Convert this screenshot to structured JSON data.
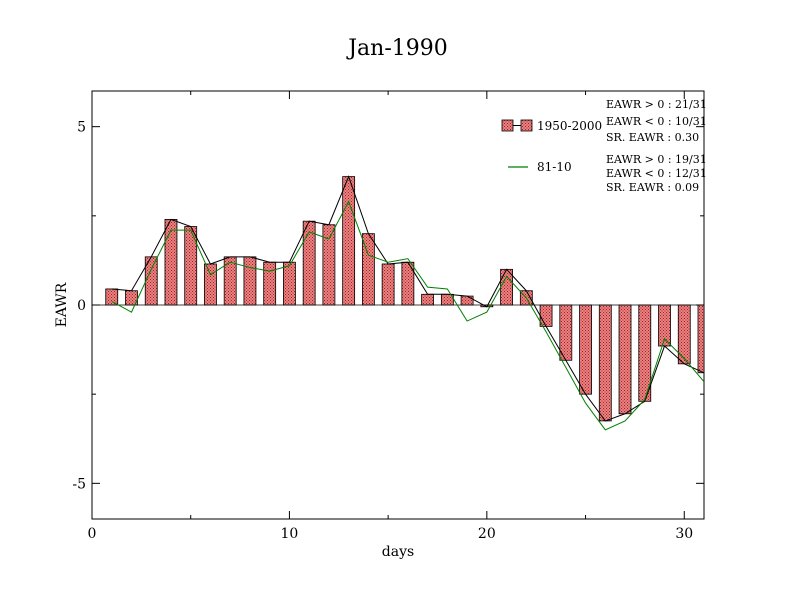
{
  "chart_data": {
    "type": "bar",
    "title": "Jan-1990",
    "xlabel": "days",
    "ylabel": "EAWR",
    "xlim": [
      0,
      31
    ],
    "ylim": [
      -6,
      6
    ],
    "x_ticks": [
      0,
      10,
      20,
      30
    ],
    "y_ticks": [
      -5,
      0,
      5
    ],
    "x_tick_labels": [
      "0",
      "10",
      "20",
      "30"
    ],
    "y_tick_labels": [
      "-5",
      "0",
      "5"
    ],
    "grid": false,
    "legend_position": "top-right",
    "colors": {
      "bar_fill": "#f08080",
      "bar_hatch": "#8b2a2a",
      "line_1950_2000": "#000000",
      "line_81_10": "#008000"
    },
    "x": [
      1,
      2,
      3,
      4,
      5,
      6,
      7,
      8,
      9,
      10,
      11,
      12,
      13,
      14,
      15,
      16,
      17,
      18,
      19,
      20,
      21,
      22,
      23,
      24,
      25,
      26,
      27,
      28,
      29,
      30,
      31
    ],
    "series": [
      {
        "name": "1950-2000",
        "render": "bar+line",
        "values": [
          0.45,
          0.4,
          1.35,
          2.4,
          2.2,
          1.15,
          1.35,
          1.35,
          1.2,
          1.2,
          2.35,
          2.25,
          3.6,
          2.0,
          1.15,
          1.2,
          0.3,
          0.3,
          0.25,
          -0.05,
          1.0,
          0.4,
          -0.6,
          -1.55,
          -2.5,
          -3.25,
          -3.05,
          -2.7,
          -1.15,
          -1.65,
          -1.9
        ]
      },
      {
        "name": "81-10",
        "render": "line",
        "values": [
          0.1,
          -0.2,
          1.0,
          2.1,
          2.1,
          0.85,
          1.2,
          1.05,
          0.95,
          1.1,
          2.05,
          1.85,
          2.9,
          1.4,
          1.2,
          1.3,
          0.5,
          0.45,
          -0.45,
          -0.2,
          0.8,
          0.2,
          -0.75,
          -1.75,
          -2.75,
          -3.5,
          -3.25,
          -2.65,
          -0.95,
          -1.5,
          -2.15
        ]
      }
    ],
    "legend": [
      {
        "label": "1950-2000",
        "stats": [
          "EAWR > 0 : 21/31",
          "EAWR < 0 : 10/31",
          "SR. EAWR :  0.30"
        ]
      },
      {
        "label": "81-10",
        "stats": [
          "EAWR > 0 : 19/31",
          "EAWR < 0 : 12/31",
          "SR. EAWR :  0.09"
        ]
      }
    ]
  }
}
